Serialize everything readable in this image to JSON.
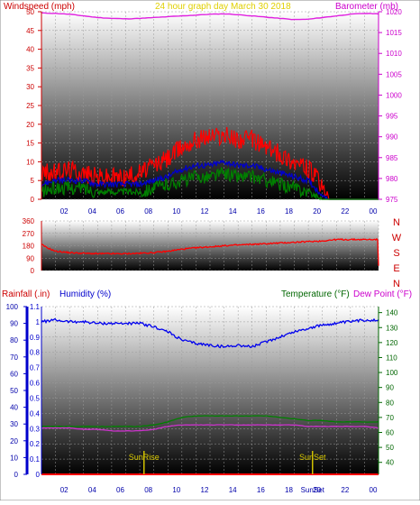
{
  "chart_data": [
    {
      "type": "line",
      "name": "wind-barometer-panel",
      "header": {
        "left": "Windspeed (mph)",
        "center": "24 hour graph day   March 30 2018",
        "right": "Barometer (mb)"
      },
      "x_ticks": [
        "02",
        "04",
        "06",
        "08",
        "10",
        "12",
        "14",
        "16",
        "18",
        "20",
        "22",
        "00"
      ],
      "x_range": [
        0,
        24
      ],
      "y_left": {
        "range": [
          0,
          50
        ],
        "ticks": [
          "0",
          "5",
          "10",
          "15",
          "20",
          "25",
          "30",
          "35",
          "40",
          "45",
          "50"
        ]
      },
      "y_right": {
        "range": [
          975,
          1020
        ],
        "ticks": [
          "975",
          "980",
          "985",
          "990",
          "995",
          "1000",
          "1005",
          "1010",
          "1015",
          "1020"
        ]
      },
      "series": [
        {
          "name": "Barometer",
          "color": "#e020e0",
          "axis": "right",
          "x": [
            0,
            1,
            2,
            3,
            4,
            5,
            6,
            7,
            8,
            9,
            10,
            11,
            12,
            13,
            14,
            15,
            16,
            17,
            18,
            19,
            20,
            21,
            22,
            23,
            24
          ],
          "values": [
            1019.7,
            1019.6,
            1019.4,
            1019.0,
            1018.6,
            1018.4,
            1018.3,
            1018.4,
            1018.6,
            1018.8,
            1019.0,
            1019.2,
            1019.4,
            1019.5,
            1019.3,
            1019.0,
            1018.7,
            1018.4,
            1018.1,
            1018.2,
            1018.6,
            1019.0,
            1019.4,
            1019.6,
            1019.5
          ]
        },
        {
          "name": "Wind Gust",
          "color": "#ff0000",
          "axis": "left",
          "x": [
            0,
            1,
            2,
            3,
            4,
            5,
            6,
            7,
            8,
            9,
            10,
            11,
            12,
            13,
            14,
            15,
            16,
            17,
            18,
            19,
            19.5,
            20,
            20.5,
            24
          ],
          "values": [
            7,
            7,
            8,
            7,
            6,
            6,
            6,
            7,
            9,
            11,
            14,
            16,
            17,
            17,
            16,
            16,
            14,
            12,
            10,
            8,
            6,
            3,
            0,
            0
          ]
        },
        {
          "name": "Wind Average",
          "color": "#0000cc",
          "axis": "left",
          "x": [
            0,
            1,
            2,
            3,
            4,
            5,
            6,
            7,
            8,
            9,
            10,
            11,
            12,
            13,
            14,
            15,
            16,
            17,
            18,
            19,
            19.5,
            20,
            20.5,
            24
          ],
          "values": [
            4,
            5,
            5,
            5,
            4,
            4,
            4,
            4,
            5,
            6,
            8,
            9,
            9,
            10,
            9,
            9,
            8,
            7,
            6,
            5,
            3,
            1,
            0,
            0
          ]
        },
        {
          "name": "Wind Speed",
          "color": "#008000",
          "axis": "left",
          "x": [
            0,
            1,
            2,
            3,
            4,
            5,
            6,
            7,
            8,
            9,
            10,
            11,
            12,
            13,
            14,
            15,
            16,
            17,
            18,
            19,
            19.5,
            20,
            20.5,
            24
          ],
          "values": [
            2,
            3,
            3,
            3,
            2,
            2,
            2,
            2,
            3,
            4,
            5,
            6,
            6,
            7,
            6,
            6,
            5,
            4,
            3,
            2,
            1,
            0,
            0,
            0
          ]
        }
      ]
    },
    {
      "type": "line",
      "name": "wind-direction-panel",
      "y_range": [
        0,
        360
      ],
      "y_ticks": [
        "0",
        "90",
        "180",
        "270",
        "360"
      ],
      "compass_labels": [
        "N",
        "W",
        "S",
        "E",
        "N"
      ],
      "series": [
        {
          "name": "Wind Direction",
          "color": "#ff0000",
          "x": [
            0,
            0.3,
            1,
            2,
            3,
            4,
            5,
            6,
            7,
            8,
            9,
            10,
            11,
            12,
            13,
            14,
            15,
            16,
            17,
            18,
            19,
            20,
            21,
            22,
            23,
            23.95,
            24
          ],
          "values": [
            190,
            170,
            140,
            130,
            125,
            122,
            122,
            122,
            125,
            130,
            140,
            155,
            165,
            172,
            180,
            185,
            190,
            195,
            200,
            205,
            210,
            215,
            225,
            225,
            225,
            225,
            30
          ]
        }
      ]
    },
    {
      "type": "line",
      "name": "rain-humidity-temperature-panel",
      "header": {
        "rain_label": "Rainfall (.in)",
        "humidity_label": "Humidity (%)",
        "temp_label": "Temperature (°F)",
        "dew_label": "Dew Point (°F)"
      },
      "x_ticks": [
        "02",
        "04",
        "06",
        "08",
        "10",
        "12",
        "14",
        "16",
        "18",
        "20",
        "22",
        "00"
      ],
      "x_range": [
        0,
        24
      ],
      "y_left": {
        "range": [
          0,
          1.1
        ],
        "ticks": [
          "0",
          "0.1",
          "0.2",
          "0.3",
          "0.4",
          "0.5",
          "0.6",
          "0.7",
          "0.8",
          "0.9",
          "1",
          "1.1"
        ]
      },
      "y_humidity": {
        "range": [
          0,
          100
        ],
        "ticks": [
          "0",
          "10",
          "20",
          "30",
          "40",
          "50",
          "60",
          "70",
          "80",
          "90",
          "100"
        ]
      },
      "y_right": {
        "range": [
          32,
          144
        ],
        "ticks": [
          "40",
          "50",
          "60",
          "70",
          "80",
          "90",
          "100",
          "110",
          "120",
          "130",
          "140"
        ]
      },
      "sunrise": {
        "label": "SunRise",
        "x": 7.3
      },
      "sunset": {
        "label": "SunSet",
        "x": 19.3
      },
      "sunset_tick_label": "SunSet",
      "series": [
        {
          "name": "Humidity",
          "color": "#0000ee",
          "axis": "humidity",
          "x": [
            0,
            1,
            2,
            3,
            4,
            5,
            6,
            7,
            8,
            9,
            10,
            11,
            12,
            13,
            14,
            15,
            16,
            17,
            18,
            19,
            20,
            21,
            22,
            23,
            24
          ],
          "values": [
            91,
            92,
            91,
            91,
            90,
            90,
            90,
            90,
            88,
            85,
            80,
            78,
            77,
            76,
            77,
            76,
            79,
            82,
            85,
            87,
            89,
            90,
            91,
            92,
            92
          ]
        },
        {
          "name": "Temperature",
          "color": "#008000",
          "axis": "right",
          "x": [
            0,
            1,
            2,
            3,
            4,
            5,
            6,
            7,
            8,
            9,
            10,
            11,
            12,
            13,
            14,
            15,
            16,
            17,
            18,
            19,
            20,
            21,
            22,
            23,
            24
          ],
          "values": [
            64,
            64,
            64,
            64,
            64,
            64,
            64,
            64,
            65,
            67,
            70,
            71,
            71,
            71,
            71,
            71,
            71,
            70,
            69,
            68,
            68,
            67,
            67,
            67,
            67
          ]
        },
        {
          "name": "Dew Point",
          "color": "#cc33cc",
          "axis": "right",
          "x": [
            0,
            1,
            2,
            3,
            4,
            5,
            6,
            7,
            8,
            9,
            10,
            11,
            12,
            13,
            14,
            15,
            16,
            17,
            18,
            19,
            20,
            21,
            22,
            23,
            24
          ],
          "values": [
            63,
            63,
            63,
            62,
            62,
            61,
            61,
            61,
            62,
            64,
            65,
            65,
            65,
            65,
            65,
            65,
            65,
            65,
            65,
            64,
            64,
            64,
            64,
            64,
            63
          ]
        },
        {
          "name": "Rainfall",
          "color": "#ff0000",
          "axis": "left",
          "x": [
            0,
            24
          ],
          "values": [
            0,
            0
          ]
        }
      ]
    }
  ]
}
